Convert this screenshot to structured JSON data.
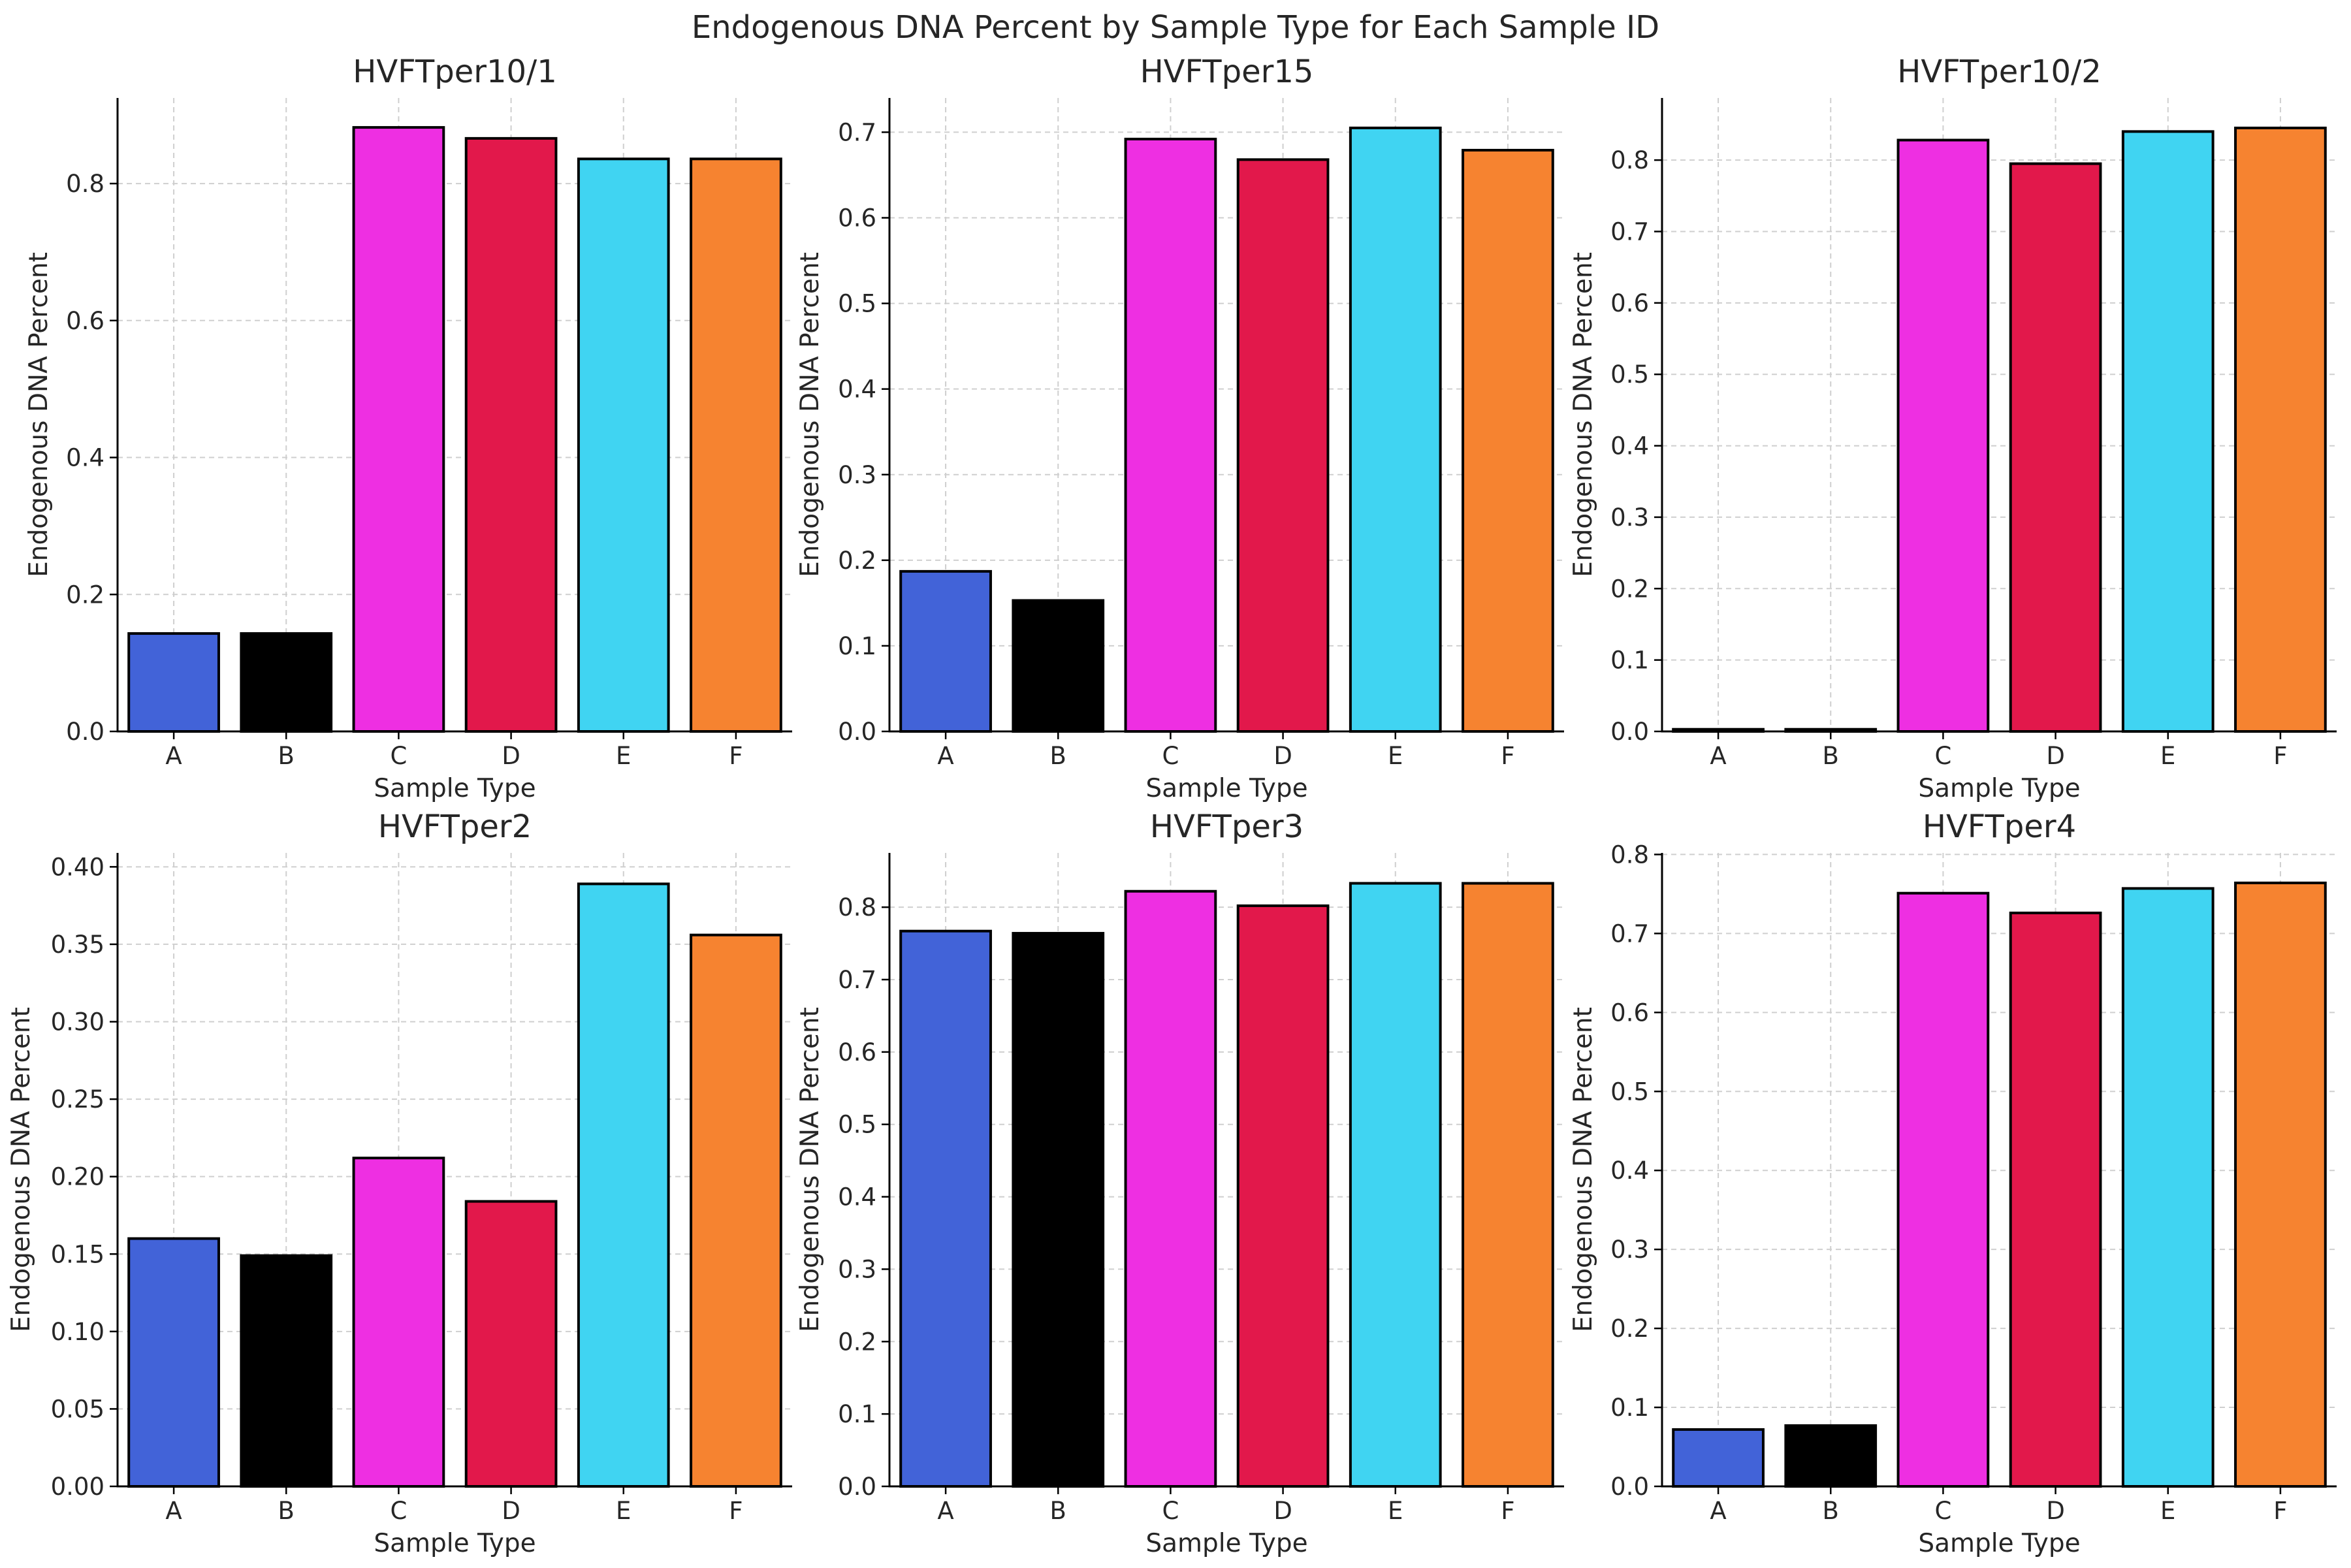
{
  "figure_title": "Endogenous DNA Percent by Sample Type for Each Sample ID",
  "chart_data": [
    {
      "type": "bar",
      "title": "HVFTper10/1",
      "xlabel": "Sample Type",
      "ylabel": "Endogenous DNA Percent",
      "categories": [
        "A",
        "B",
        "C",
        "D",
        "E",
        "F"
      ],
      "values": [
        0.143,
        0.143,
        0.882,
        0.866,
        0.836,
        0.836
      ],
      "ylim": [
        0,
        0.925
      ],
      "yticks": [
        0.0,
        0.2,
        0.4,
        0.6,
        0.8
      ],
      "ytick_labels": [
        "0.0",
        "0.2",
        "0.4",
        "0.6",
        "0.8"
      ],
      "grid": true
    },
    {
      "type": "bar",
      "title": "HVFTper15",
      "xlabel": "Sample Type",
      "ylabel": "Endogenous DNA Percent",
      "categories": [
        "A",
        "B",
        "C",
        "D",
        "E",
        "F"
      ],
      "values": [
        0.187,
        0.153,
        0.692,
        0.668,
        0.705,
        0.679
      ],
      "ylim": [
        0,
        0.74
      ],
      "yticks": [
        0.0,
        0.1,
        0.2,
        0.3,
        0.4,
        0.5,
        0.6,
        0.7
      ],
      "ytick_labels": [
        "0.0",
        "0.1",
        "0.2",
        "0.3",
        "0.4",
        "0.5",
        "0.6",
        "0.7"
      ],
      "grid": true
    },
    {
      "type": "bar",
      "title": "HVFTper10/2",
      "xlabel": "Sample Type",
      "ylabel": "Endogenous DNA Percent",
      "categories": [
        "A",
        "B",
        "C",
        "D",
        "E",
        "F"
      ],
      "values": [
        0.003,
        0.003,
        0.828,
        0.795,
        0.84,
        0.845
      ],
      "ylim": [
        0,
        0.887
      ],
      "yticks": [
        0.0,
        0.1,
        0.2,
        0.3,
        0.4,
        0.5,
        0.6,
        0.7,
        0.8
      ],
      "ytick_labels": [
        "0.0",
        "0.1",
        "0.2",
        "0.3",
        "0.4",
        "0.5",
        "0.6",
        "0.7",
        "0.8"
      ],
      "grid": true
    },
    {
      "type": "bar",
      "title": "HVFTper2",
      "xlabel": "Sample Type",
      "ylabel": "Endogenous DNA Percent",
      "categories": [
        "A",
        "B",
        "C",
        "D",
        "E",
        "F"
      ],
      "values": [
        0.16,
        0.149,
        0.212,
        0.184,
        0.389,
        0.356
      ],
      "ylim": [
        0,
        0.409
      ],
      "yticks": [
        0.0,
        0.05,
        0.1,
        0.15,
        0.2,
        0.25,
        0.3,
        0.35,
        0.4
      ],
      "ytick_labels": [
        "0.00",
        "0.05",
        "0.10",
        "0.15",
        "0.20",
        "0.25",
        "0.30",
        "0.35",
        "0.40"
      ],
      "grid": true
    },
    {
      "type": "bar",
      "title": "HVFTper3",
      "xlabel": "Sample Type",
      "ylabel": "Endogenous DNA Percent",
      "categories": [
        "A",
        "B",
        "C",
        "D",
        "E",
        "F"
      ],
      "values": [
        0.767,
        0.764,
        0.822,
        0.802,
        0.833,
        0.833
      ],
      "ylim": [
        0,
        0.875
      ],
      "yticks": [
        0.0,
        0.1,
        0.2,
        0.3,
        0.4,
        0.5,
        0.6,
        0.7,
        0.8
      ],
      "ytick_labels": [
        "0.0",
        "0.1",
        "0.2",
        "0.3",
        "0.4",
        "0.5",
        "0.6",
        "0.7",
        "0.8"
      ],
      "grid": true
    },
    {
      "type": "bar",
      "title": "HVFTper4",
      "xlabel": "Sample Type",
      "ylabel": "Endogenous DNA Percent",
      "categories": [
        "A",
        "B",
        "C",
        "D",
        "E",
        "F"
      ],
      "values": [
        0.072,
        0.077,
        0.751,
        0.726,
        0.757,
        0.764
      ],
      "ylim": [
        0,
        0.802
      ],
      "yticks": [
        0.0,
        0.1,
        0.2,
        0.3,
        0.4,
        0.5,
        0.6,
        0.7,
        0.8
      ],
      "ytick_labels": [
        "0.0",
        "0.1",
        "0.2",
        "0.3",
        "0.4",
        "0.5",
        "0.6",
        "0.7",
        "0.8"
      ],
      "grid": true
    }
  ],
  "bar_colors": {
    "A": "#4263d8",
    "B": "#000000",
    "C": "#ee2fe2",
    "D": "#e2184b",
    "E": "#40d4f2",
    "F": "#f68330"
  }
}
